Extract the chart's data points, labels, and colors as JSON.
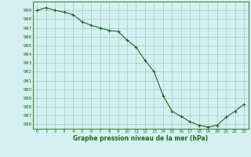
{
  "x": [
    0,
    1,
    2,
    3,
    4,
    5,
    6,
    7,
    8,
    9,
    10,
    11,
    12,
    13,
    14,
    15,
    16,
    17,
    18,
    19,
    20,
    21,
    22,
    23
  ],
  "y": [
    999.0,
    999.3,
    999.0,
    998.8,
    998.5,
    997.7,
    997.3,
    997.0,
    996.7,
    996.6,
    995.6,
    994.8,
    993.3,
    992.0,
    989.3,
    987.5,
    986.9,
    986.3,
    985.9,
    985.7,
    985.9,
    986.8,
    987.5,
    988.3
  ],
  "line_color": "#1a6b1a",
  "marker_color": "#1a6b1a",
  "bg_color": "#d4f0f0",
  "grid_color": "#a0c8c8",
  "axis_color": "#1a6b1a",
  "xlabel": "Graphe pression niveau de la mer (hPa)",
  "ylim": [
    985.5,
    1000.0
  ],
  "yticks": [
    986,
    987,
    988,
    989,
    990,
    991,
    992,
    993,
    994,
    995,
    996,
    997,
    998,
    999
  ],
  "xlim": [
    -0.5,
    23.5
  ],
  "xticks": [
    0,
    1,
    2,
    3,
    4,
    5,
    6,
    7,
    8,
    9,
    10,
    11,
    12,
    13,
    14,
    15,
    16,
    17,
    18,
    19,
    20,
    21,
    22,
    23
  ]
}
